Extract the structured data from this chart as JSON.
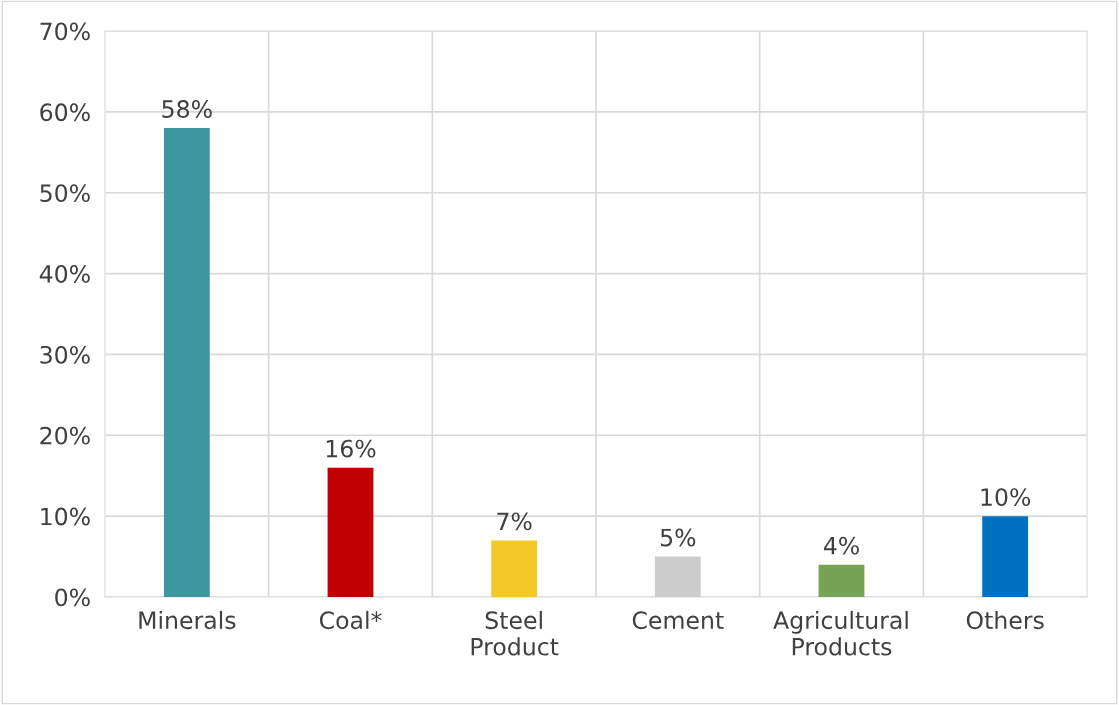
{
  "chart_data": {
    "type": "bar",
    "categories": [
      "Minerals",
      "Coal*",
      "Steel Product",
      "Cement",
      "Agricultural Products",
      "Others"
    ],
    "values": [
      58,
      16,
      7,
      5,
      4,
      10
    ],
    "colors": [
      "#3e96a0",
      "#c00000",
      "#f4c927",
      "#cccccc",
      "#77a354",
      "#0070c0"
    ],
    "value_labels": [
      "58%",
      "16%",
      "7%",
      "5%",
      "4%",
      "10%"
    ],
    "ylim": [
      0,
      70
    ],
    "yticks": [
      {
        "value": 0,
        "label": "0%"
      },
      {
        "value": 10,
        "label": "10%"
      },
      {
        "value": 20,
        "label": "20%"
      },
      {
        "value": 30,
        "label": "30%"
      },
      {
        "value": 40,
        "label": "40%"
      },
      {
        "value": 50,
        "label": "50%"
      },
      {
        "value": 60,
        "label": "60%"
      },
      {
        "value": 70,
        "label": "70%"
      }
    ],
    "grid": true
  }
}
